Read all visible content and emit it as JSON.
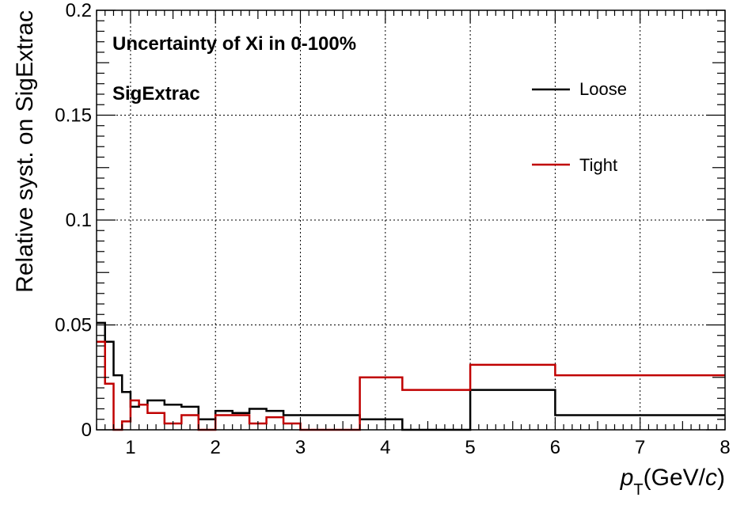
{
  "chart_data": {
    "type": "line",
    "title": "",
    "xlabel": {
      "var": "p",
      "sub": "T",
      "unit_open": "(GeV/",
      "unit_var": "c",
      "unit_close": ")"
    },
    "ylabel": "Relative syst. on SigExtrac",
    "xlim": [
      0.6,
      8
    ],
    "ylim": [
      0,
      0.2
    ],
    "x_ticks": [
      1,
      2,
      3,
      4,
      5,
      6,
      7,
      8
    ],
    "x_tick_labels": [
      "1",
      "2",
      "3",
      "4",
      "5",
      "6",
      "7",
      "8"
    ],
    "y_ticks": [
      0,
      0.05,
      0.1,
      0.15,
      0.2
    ],
    "y_tick_labels": [
      "0",
      "0.05",
      "0.1",
      "0.15",
      "0.2"
    ],
    "grid": true,
    "annotations": [
      "Uncertainty of Xi in 0-100%",
      "SigExtrac"
    ],
    "legend_position": "top-right",
    "bin_edges": [
      0.6,
      0.7,
      0.8,
      0.9,
      1.0,
      1.1,
      1.2,
      1.4,
      1.6,
      1.8,
      2.0,
      2.2,
      2.4,
      2.6,
      2.8,
      3.0,
      3.2,
      3.7,
      4.2,
      5.0,
      6.0,
      8.0
    ],
    "series": [
      {
        "name": "Loose",
        "color": "#000000",
        "values": [
          0.051,
          0.042,
          0.026,
          0.018,
          0.011,
          0.012,
          0.014,
          0.012,
          0.011,
          0.005,
          0.009,
          0.008,
          0.01,
          0.009,
          0.007,
          0.007,
          0.007,
          0.005,
          0.0,
          0.019,
          0.007
        ]
      },
      {
        "name": "Tight",
        "color": "#c00000",
        "values": [
          0.042,
          0.022,
          0.0,
          0.004,
          0.014,
          0.012,
          0.008,
          0.003,
          0.007,
          0.0,
          0.007,
          0.007,
          0.003,
          0.006,
          0.003,
          0.0,
          0.0,
          0.025,
          0.019,
          0.031,
          0.026
        ]
      }
    ]
  }
}
